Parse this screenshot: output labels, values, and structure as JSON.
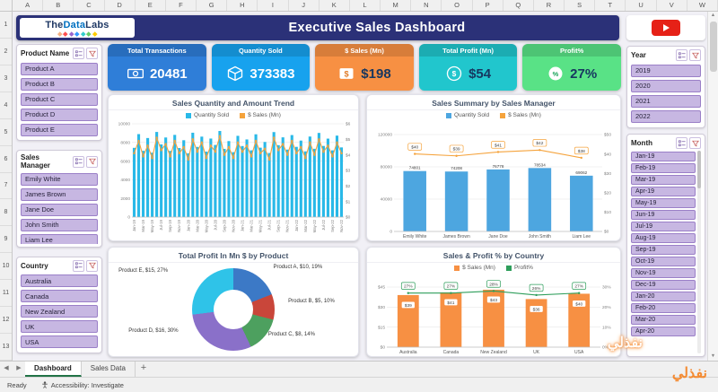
{
  "excel": {
    "columns": [
      "A",
      "B",
      "C",
      "D",
      "E",
      "F",
      "G",
      "H",
      "I",
      "J",
      "K",
      "L",
      "M",
      "N",
      "O",
      "P",
      "Q",
      "R",
      "S",
      "T",
      "U",
      "V",
      "W"
    ],
    "rows": [
      "1",
      "2",
      "3",
      "4",
      "5",
      "6",
      "7",
      "8",
      "9",
      "10",
      "11",
      "12",
      "13"
    ],
    "tabs": [
      {
        "label": "Dashboard",
        "active": true
      },
      {
        "label": "Sales Data",
        "active": false
      }
    ],
    "new_sheet": "+",
    "status_ready": "Ready",
    "accessibility": "Accessibility: Investigate"
  },
  "header": {
    "logo": {
      "parts": [
        {
          "text": "The",
          "color": "#1f3864"
        },
        {
          "text": "Data",
          "color": "#0070c0"
        },
        {
          "text": "Labs",
          "color": "#1f3864"
        }
      ],
      "diamonds": [
        "#f4b183",
        "#ff5050",
        "#9966cc",
        "#3399ff",
        "#33cccc",
        "#66cc66",
        "#ffcc00"
      ]
    },
    "title": "Executive Sales Dashboard"
  },
  "watermark": "نفذلي",
  "slicers_left": [
    {
      "title": "Product Name",
      "items": [
        "Product A",
        "Product B",
        "Product C",
        "Product D",
        "Product E"
      ]
    },
    {
      "title": "Sales Manager",
      "items": [
        "Emily White",
        "James Brown",
        "Jane Doe",
        "John Smith",
        "Liam Lee"
      ]
    },
    {
      "title": "Country",
      "items": [
        "Australia",
        "Canada",
        "New Zealand",
        "UK",
        "USA"
      ]
    }
  ],
  "slicers_right": [
    {
      "title": "Year",
      "items": [
        "2019",
        "2020",
        "2021",
        "2022"
      ]
    },
    {
      "title": "Month",
      "items": [
        "Jan-19",
        "Feb-19",
        "Mar-19",
        "Apr-19",
        "May-19",
        "Jun-19",
        "Jul-19",
        "Aug-19",
        "Sep-19",
        "Oct-19",
        "Nov-19",
        "Dec-19",
        "Jan-20",
        "Feb-20",
        "Mar-20",
        "Apr-20"
      ]
    }
  ],
  "kpis": [
    {
      "title": "Total Transactions",
      "value": "20481",
      "color": "#2f7ed8",
      "value_color": "#ffffff",
      "icon": "banknote"
    },
    {
      "title": "Quantity Sold",
      "value": "373383",
      "color": "#17a2ee",
      "value_color": "#ffffff",
      "icon": "box"
    },
    {
      "title": "$ Sales (Mn)",
      "value": "$198",
      "color": "#f79043",
      "value_color": "#173760",
      "icon": "tag"
    },
    {
      "title": "Total Profit (Mn)",
      "value": "$54",
      "color": "#21c6cd",
      "value_color": "#173760",
      "icon": "coin"
    },
    {
      "title": "Profit%",
      "value": "27%",
      "color": "#59e286",
      "value_color": "#173760",
      "icon": "percent"
    }
  ],
  "chart_data": [
    {
      "type": "combo-bar-line",
      "title": "Sales Quantity and Amount Trend",
      "legend": [
        {
          "label": "Quantity Sold",
          "color": "#29b9e8"
        },
        {
          "label": "$ Sales (Mn)",
          "color": "#f5a33c"
        }
      ],
      "x": [
        "Jan-19",
        "Feb-19",
        "Mar-19",
        "Apr-19",
        "May-19",
        "Jun-19",
        "Jul-19",
        "Aug-19",
        "Sep-19",
        "Oct-19",
        "Nov-19",
        "Dec-19",
        "Jan-20",
        "Feb-20",
        "Mar-20",
        "Apr-20",
        "May-20",
        "Jun-20",
        "Jul-20",
        "Aug-20",
        "Sep-20",
        "Oct-20",
        "Nov-20",
        "Dec-20",
        "Jan-21",
        "Feb-21",
        "Mar-21",
        "Apr-21",
        "May-21",
        "Jun-21",
        "Jul-21",
        "Aug-21",
        "Sep-21",
        "Oct-21",
        "Nov-21",
        "Dec-21",
        "Jan-22",
        "Feb-22",
        "Mar-22",
        "Apr-22",
        "May-22",
        "Jun-22",
        "Jul-22",
        "Aug-22",
        "Sep-22",
        "Oct-22",
        "Nov-22"
      ],
      "series": [
        {
          "name": "Quantity Sold",
          "type": "bar",
          "values": [
            7421,
            8893,
            7102,
            8474,
            6903,
            9125,
            7788,
            8532,
            7093,
            8811,
            7402,
            8239,
            6839,
            9043,
            7521,
            8624,
            7015,
            8418,
            7732,
            9228,
            7311,
            8146,
            6958,
            8709,
            7614,
            8323,
            7154,
            8874,
            7441,
            8052,
            6872,
            9112,
            7706,
            8547,
            7233,
            8792,
            7528,
            8201,
            7044,
            8633,
            7317,
            9021,
            7625,
            8409,
            7152,
            8731,
            7468
          ]
        },
        {
          "name": "$ Sales (Mn)",
          "type": "line",
          "values": [
            4.1,
            4.9,
            3.9,
            4.6,
            3.8,
            5.1,
            4.3,
            4.7,
            3.9,
            4.9,
            4.1,
            4.5,
            3.7,
            5.0,
            4.2,
            4.8,
            3.8,
            4.6,
            4.2,
            5.2,
            4.0,
            4.5,
            3.8,
            4.8,
            4.2,
            4.6,
            3.9,
            4.9,
            4.1,
            4.4,
            3.7,
            5.1,
            4.3,
            4.7,
            4.0,
            4.9,
            4.1,
            4.5,
            3.8,
            4.8,
            4.0,
            5.0,
            4.2,
            4.6,
            3.9,
            4.8,
            4.1
          ]
        }
      ],
      "y_left": {
        "max": 10000,
        "ticks": [
          0,
          2000,
          4000,
          6000,
          8000,
          10000
        ],
        "labels": [
          "0",
          "2000",
          "4000",
          "6000",
          "8000",
          "10000"
        ]
      },
      "y_right": {
        "max": 6,
        "ticks": [
          0,
          1,
          2,
          3,
          4,
          5,
          6
        ],
        "labels": [
          "$0",
          "$1",
          "$2",
          "$3",
          "$4",
          "$5",
          "$6"
        ]
      },
      "colors": {
        "bar": "#29b9e8",
        "line": "#f5a33c"
      }
    },
    {
      "type": "combo-bar-line",
      "title": "Sales Summary by Sales Manager",
      "legend": [
        {
          "label": "Quantity Sold",
          "color": "#4da6e0"
        },
        {
          "label": "$ Sales (Mn)",
          "color": "#f5a33c"
        }
      ],
      "x": [
        "Emily White",
        "James Brown",
        "Jane Doe",
        "John Smith",
        "Liam Lee"
      ],
      "series": [
        {
          "name": "Quantity Sold",
          "type": "bar",
          "values": [
            74801,
            74208,
            76778,
            78534,
            69062
          ],
          "labels": [
            "74801",
            "74208",
            "76778",
            "78534",
            "69062"
          ]
        },
        {
          "name": "$ Sales (Mn)",
          "type": "line",
          "values": [
            40,
            39,
            41,
            42,
            38
          ],
          "labels": [
            "$40",
            "$39",
            "$41",
            "$42",
            "$38"
          ]
        }
      ],
      "y_left": {
        "max": 120000,
        "ticks": [
          0,
          40000,
          80000,
          120000
        ],
        "labels": [
          "0",
          "40000",
          "80000",
          "120000"
        ]
      },
      "y_right": {
        "max": 50,
        "ticks": [
          0,
          10,
          20,
          30,
          40,
          50
        ],
        "labels": [
          "$0",
          "$10",
          "$20",
          "$30",
          "$40",
          "$50"
        ]
      },
      "colors": {
        "bar": "#4da6e0",
        "line": "#f5a33c"
      }
    },
    {
      "type": "donut",
      "title": "Total Profit In Mn $ by Product",
      "slices": [
        {
          "label": "Product A, $10, 19%",
          "value": 10,
          "pct": 19,
          "color": "#3c79c6"
        },
        {
          "label": "Product B, $5, 10%",
          "value": 5,
          "pct": 10,
          "color": "#c9463a"
        },
        {
          "label": "Product C, $8, 14%",
          "value": 8,
          "pct": 14,
          "color": "#4da05f"
        },
        {
          "label": "Product D, $16, 30%",
          "value": 16,
          "pct": 30,
          "color": "#8a70c9"
        },
        {
          "label": "Product E, $15, 27%",
          "value": 15,
          "pct": 27,
          "color": "#2fc3e8"
        }
      ]
    },
    {
      "type": "combo-bar-line",
      "title": "Sales & Profit % by Country",
      "legend": [
        {
          "label": "$ Sales (Mn)",
          "color": "#f79043"
        },
        {
          "label": "Profit%",
          "color": "#2e9e5b"
        }
      ],
      "x": [
        "Australia",
        "Canada",
        "New Zealand",
        "UK",
        "USA"
      ],
      "series": [
        {
          "name": "$ Sales (Mn)",
          "type": "bar",
          "values": [
            39,
            41,
            43,
            36,
            40
          ],
          "labels": [
            "$39",
            "$41",
            "$43",
            "$36",
            "$40"
          ]
        },
        {
          "name": "Profit%",
          "type": "line",
          "values": [
            27,
            27,
            28,
            26,
            27
          ],
          "labels": [
            "27%",
            "27%",
            "28%",
            "26%",
            "27%"
          ]
        }
      ],
      "y_left": {
        "max": 45,
        "ticks": [
          0,
          15,
          30,
          45
        ],
        "labels": [
          "$0",
          "$15",
          "$30",
          "$45"
        ]
      },
      "y_right": {
        "max": 30,
        "ticks": [
          0,
          10,
          20,
          30
        ],
        "labels": [
          "0%",
          "10%",
          "20%",
          "30%"
        ]
      },
      "colors": {
        "bar": "#f79043",
        "line": "#2e9e5b"
      }
    }
  ]
}
